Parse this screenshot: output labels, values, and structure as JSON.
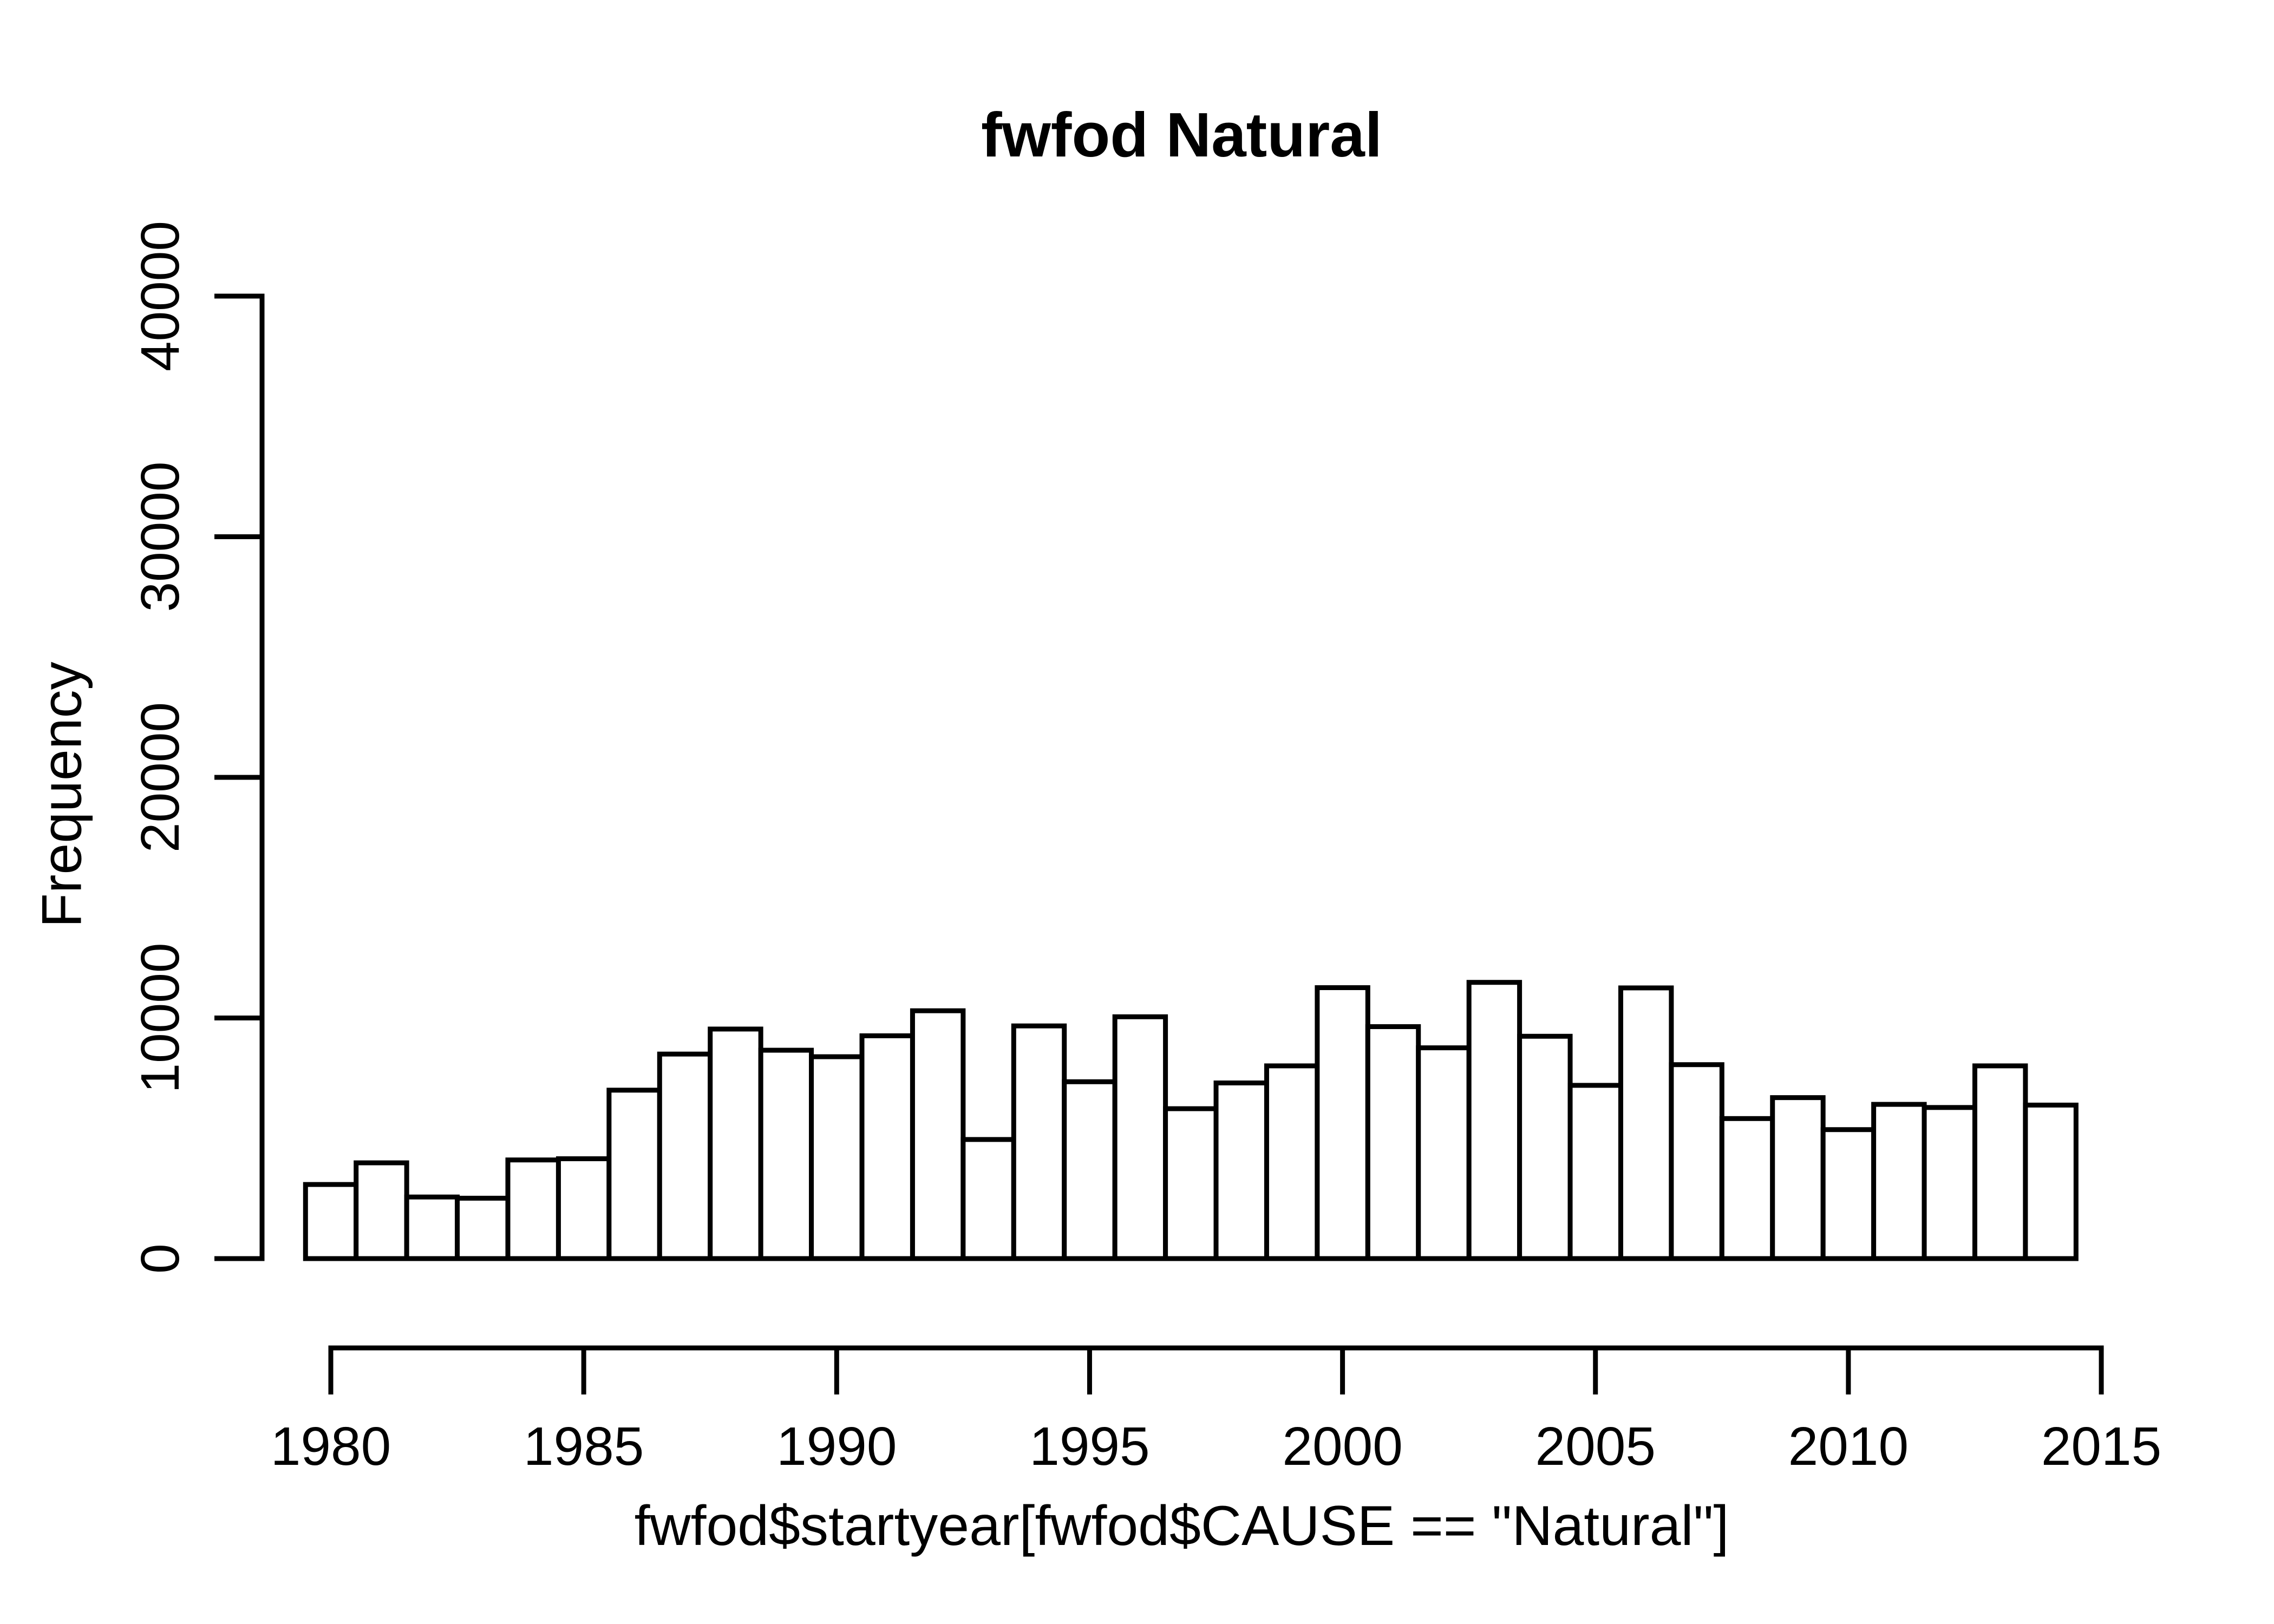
{
  "figure": {
    "background": "#ffffff",
    "foreground": "#000000"
  },
  "chart_data": {
    "type": "bar",
    "subtype": "histogram",
    "title": "fwfod Natural",
    "xlabel": "fwfod$startyear[fwfod$CAUSE == \"Natural\"]",
    "ylabel": "Frequency",
    "categories": [
      1980,
      1981,
      1982,
      1983,
      1984,
      1985,
      1986,
      1987,
      1988,
      1989,
      1990,
      1991,
      1992,
      1993,
      1994,
      1995,
      1996,
      1997,
      1998,
      1999,
      2000,
      2001,
      2002,
      2003,
      2004,
      2005,
      2006,
      2007,
      2008,
      2009,
      2010,
      2011,
      2012,
      2013,
      2014
    ],
    "values": [
      3080,
      3980,
      2560,
      2510,
      4100,
      4150,
      7000,
      8500,
      9540,
      8660,
      8390,
      9260,
      10300,
      4950,
      9670,
      7350,
      10050,
      6230,
      7300,
      8010,
      11260,
      9640,
      8760,
      11480,
      9240,
      7200,
      11250,
      8060,
      5820,
      6690,
      5360,
      6410,
      6280,
      8010,
      6380
    ],
    "bin_width_years": 1,
    "x_ticks": [
      1980,
      1985,
      1990,
      1995,
      2000,
      2005,
      2010,
      2015
    ],
    "x_tick_labels": [
      "1980",
      "1985",
      "1990",
      "1995",
      "2000",
      "2005",
      "2010",
      "2015"
    ],
    "y_ticks": [
      0,
      10000,
      20000,
      30000,
      40000
    ],
    "y_tick_labels": [
      "0",
      "10000",
      "20000",
      "30000",
      "40000"
    ],
    "xlim": [
      1979.5,
      2015
    ],
    "ylim": [
      0,
      40000
    ],
    "grid": false,
    "legend_position": "none",
    "bar_fill": "#ffffff",
    "bar_stroke": "#000000",
    "axis_color": "#000000"
  }
}
